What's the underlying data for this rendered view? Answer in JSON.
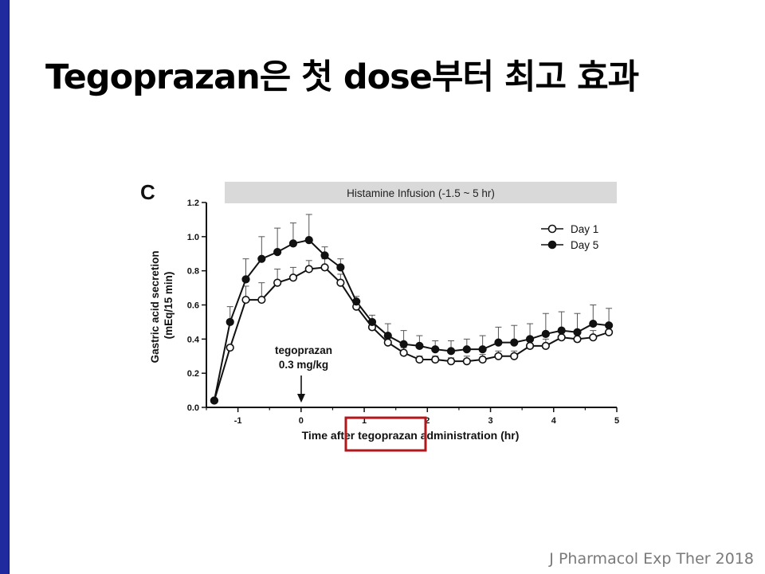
{
  "slide": {
    "title": "Tegoprazan은 첫 dose부터 최고 효과",
    "citation": "J Pharmacol Exp Ther 2018"
  },
  "chart_data": {
    "type": "line",
    "panel_label": "C",
    "banner": "Histamine Infusion (-1.5 ~ 5 hr)",
    "xlabel_parts": [
      "Time after ",
      "tegoprazan",
      " administration (hr)"
    ],
    "highlight_color": "#b2171c",
    "ylabel_lines": [
      "Gastric acid secretion",
      "(mEq/15 min)"
    ],
    "xlim": [
      -1.5,
      5
    ],
    "ylim": [
      0,
      1.2
    ],
    "x_ticks": [
      -1,
      0,
      1,
      2,
      3,
      4,
      5
    ],
    "x_tick_labels": [
      "-1",
      "0",
      "1",
      "2",
      "3",
      "4",
      "5"
    ],
    "y_ticks": [
      0.0,
      0.2,
      0.4,
      0.6,
      0.8,
      1.0,
      1.2
    ],
    "y_tick_labels": [
      "0.0",
      "0.2",
      "0.4",
      "0.6",
      "0.8",
      "1.0",
      "1.2"
    ],
    "grid": false,
    "legend_position": "top-right",
    "annotation": {
      "lines": [
        "tegoprazan",
        "0.3 mg/kg"
      ],
      "x": 0
    },
    "x": [
      -1.375,
      -1.125,
      -0.875,
      -0.625,
      -0.375,
      -0.125,
      0.125,
      0.375,
      0.625,
      0.875,
      1.125,
      1.375,
      1.625,
      1.875,
      2.125,
      2.375,
      2.625,
      2.875,
      3.125,
      3.375,
      3.625,
      3.875,
      4.125,
      4.375,
      4.625,
      4.875
    ],
    "series": [
      {
        "name": "Day 1",
        "marker": "open-circle",
        "values": [
          0.04,
          0.35,
          0.63,
          0.63,
          0.73,
          0.76,
          0.81,
          0.82,
          0.73,
          0.59,
          0.47,
          0.38,
          0.32,
          0.28,
          0.28,
          0.27,
          0.27,
          0.28,
          0.3,
          0.3,
          0.36,
          0.36,
          0.41,
          0.4,
          0.41,
          0.44
        ],
        "error": [
          0,
          0,
          0.08,
          0.1,
          0.08,
          0.06,
          0.05,
          0.05,
          0.05,
          0.03,
          0.03,
          0.04,
          0.03,
          0.02,
          0.02,
          0.02,
          0.03,
          0.03,
          0.03,
          0.03,
          0.04,
          0.04,
          0.04,
          0.04,
          0.04,
          0.05
        ]
      },
      {
        "name": "Day 5",
        "marker": "filled-circle",
        "values": [
          0.04,
          0.5,
          0.75,
          0.87,
          0.91,
          0.96,
          0.98,
          0.89,
          0.82,
          0.62,
          0.5,
          0.42,
          0.37,
          0.36,
          0.34,
          0.33,
          0.34,
          0.34,
          0.38,
          0.38,
          0.4,
          0.43,
          0.45,
          0.44,
          0.49,
          0.48
        ]
      }
    ],
    "series_day5_error": [
      0,
      0.09,
      0.12,
      0.13,
      0.14,
      0.12,
      0.15,
      0.05,
      0.05,
      0.03,
      0.04,
      0.07,
      0.08,
      0.06,
      0.05,
      0.06,
      0.06,
      0.08,
      0.09,
      0.1,
      0.09,
      0.12,
      0.11,
      0.11,
      0.11,
      0.1
    ]
  }
}
